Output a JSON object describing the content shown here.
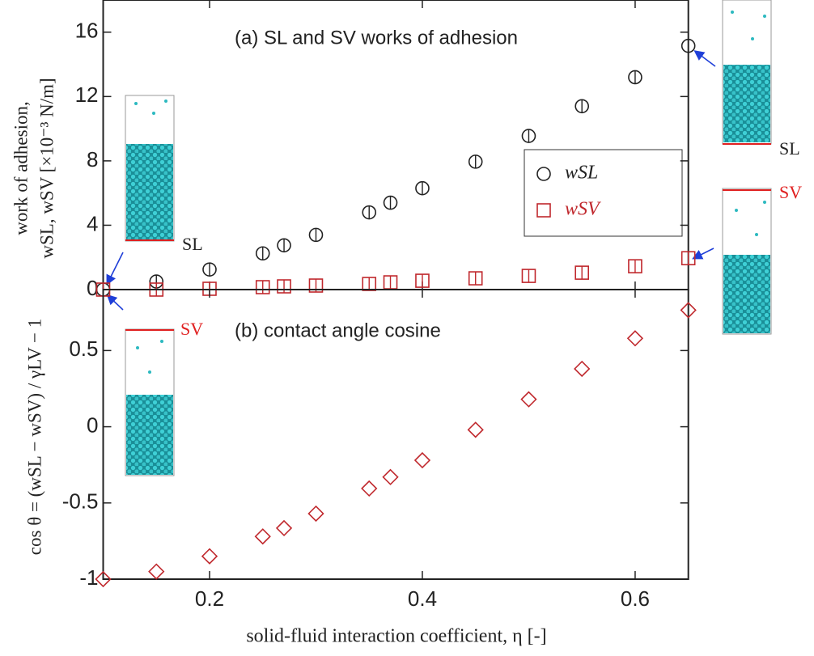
{
  "chart_data": [
    {
      "type": "scatter",
      "title": "(a) SL and SV works of adhesion",
      "ylabel": [
        "work of adhesion,",
        "wSL, wSV [×10⁻³ N/m]"
      ],
      "xlim": [
        0.1,
        0.65
      ],
      "ylim": [
        0,
        18
      ],
      "yticks": [
        0,
        4,
        8,
        12,
        16
      ],
      "x": [
        0.1,
        0.15,
        0.2,
        0.25,
        0.27,
        0.3,
        0.35,
        0.37,
        0.4,
        0.45,
        0.5,
        0.55,
        0.6,
        0.65
      ],
      "series": [
        {
          "name": "wSL",
          "color": "#222222",
          "marker": "circle",
          "values": [
            0,
            0.5,
            1.25,
            2.25,
            2.75,
            3.4,
            4.8,
            5.4,
            6.3,
            7.95,
            9.55,
            11.4,
            13.2,
            15.15
          ]
        },
        {
          "name": "wSV",
          "color": "#c0282d",
          "marker": "square",
          "values": [
            0,
            0,
            0.05,
            0.15,
            0.2,
            0.25,
            0.35,
            0.45,
            0.55,
            0.7,
            0.85,
            1.05,
            1.45,
            1.95
          ]
        }
      ],
      "annotations": [
        "SL",
        "SV",
        "SL",
        "SV"
      ]
    },
    {
      "type": "scatter",
      "title": "(b) contact angle cosine",
      "ylabel": "cos θ = (wSL − wSV) / γLV − 1",
      "xlabel": "solid-fluid interaction coefficient, η [-]",
      "xlim": [
        0.1,
        0.65
      ],
      "xticks": [
        0.2,
        0.4,
        0.6
      ],
      "ylim": [
        -1,
        0.9
      ],
      "yticks": [
        -1,
        -0.5,
        0,
        0.5
      ],
      "x": [
        0.1,
        0.15,
        0.2,
        0.25,
        0.27,
        0.3,
        0.35,
        0.37,
        0.4,
        0.45,
        0.5,
        0.55,
        0.6,
        0.65
      ],
      "series": [
        {
          "name": "cos θ",
          "color": "#c0282d",
          "marker": "diamond",
          "values": [
            -1,
            -0.95,
            -0.85,
            -0.72,
            -0.665,
            -0.57,
            -0.405,
            -0.33,
            -0.22,
            -0.02,
            0.18,
            0.38,
            0.58,
            0.765
          ]
        }
      ]
    }
  ]
}
